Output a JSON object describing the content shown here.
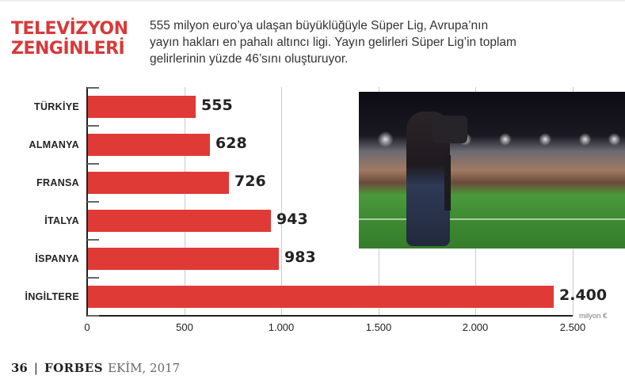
{
  "header": {
    "title_line1": "TELEVİZYON",
    "title_line2": "ZENGİNLERİ",
    "subtitle_line1": "555 milyon euro’ya ulaşan büyüklüğüyle Süper Lig, Avrupa’nın",
    "subtitle_line2": "yayın hakları en pahalı altıncı ligi. Yayın gelirleri Süper Lig’in toplam",
    "subtitle_line3": "gelirlerinin yüzde 46’sını oluşturuyor."
  },
  "colors": {
    "accent": "#d8393a",
    "bar": "#e03a36",
    "grid": "#c9cbd6"
  },
  "chart_data": {
    "type": "bar",
    "orientation": "horizontal",
    "title": "TELEVİZYON ZENGİNLERİ",
    "categories": [
      "TÜRKİYE",
      "ALMANYA",
      "FRANSA",
      "İTALYA",
      "İSPANYA",
      "İNGİLTERE"
    ],
    "values": [
      555,
      628,
      726,
      943,
      983,
      2400
    ],
    "value_labels": [
      "555",
      "628",
      "726",
      "943",
      "983",
      "2.400"
    ],
    "xlabel": "milyon €",
    "ylabel": "",
    "xlim": [
      0,
      2500
    ],
    "xticks": [
      "0",
      "500",
      "1.000",
      "1.500",
      "2.000",
      "2.500"
    ],
    "grid": true,
    "legend": null
  },
  "image": {
    "description": "cameraman filming football match in stadium at night"
  },
  "footer": {
    "page": "36",
    "separator": "|",
    "brand": "FORBES",
    "date": "EKİM, 2017"
  }
}
